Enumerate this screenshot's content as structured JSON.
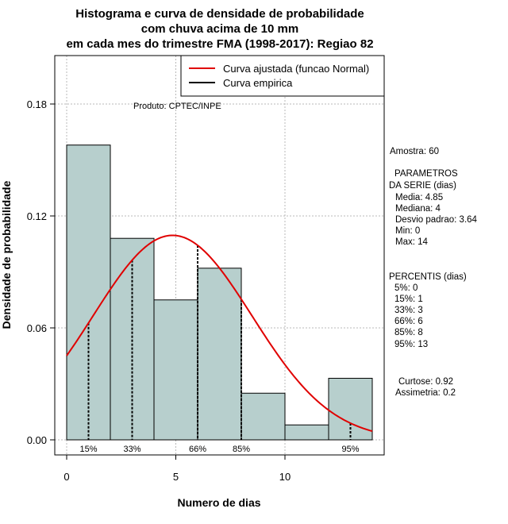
{
  "chart_data": {
    "type": "bar",
    "title_lines": [
      "Histograma e curva de densidade de probabilidade",
      "com chuva acima de 10 mm",
      "em cada mes do trimestre FMA (1998-2017): Regiao 82"
    ],
    "xlabel": "Numero de dias",
    "ylabel": "Densidade de probabilidade",
    "xlim": [
      -0.5,
      14.5
    ],
    "ylim": [
      0,
      0.2
    ],
    "x_ticks": [
      0,
      5,
      10
    ],
    "y_ticks": [
      0.0,
      0.06,
      0.12,
      0.18
    ],
    "y_tick_labels": [
      "0.00",
      "0.06",
      "0.12",
      "0.18"
    ],
    "grid": true,
    "bins": [
      {
        "x0": 0,
        "x1": 2,
        "density": 0.158
      },
      {
        "x0": 2,
        "x1": 4,
        "density": 0.108
      },
      {
        "x0": 4,
        "x1": 6,
        "density": 0.075
      },
      {
        "x0": 6,
        "x1": 8,
        "density": 0.092
      },
      {
        "x0": 8,
        "x1": 10,
        "density": 0.025
      },
      {
        "x0": 10,
        "x1": 12,
        "density": 0.008
      },
      {
        "x0": 12,
        "x1": 14,
        "density": 0.033
      }
    ],
    "bar_color": "#b7cfcd",
    "normal_curve": {
      "mean": 4.85,
      "sd": 3.64,
      "x_range": [
        0,
        14
      ],
      "color": "#e00000"
    },
    "percentile_lines": [
      {
        "label": "15%",
        "x": 1
      },
      {
        "label": "33%",
        "x": 3
      },
      {
        "label": "66%",
        "x": 6
      },
      {
        "label": "85%",
        "x": 8
      },
      {
        "label": "95%",
        "x": 13
      }
    ],
    "legend": {
      "position": "top-right",
      "entries": [
        {
          "label": "Curva ajustada (funcao Normal)",
          "color": "#e00000"
        },
        {
          "label": "Curva empirica",
          "color": "#000000"
        }
      ]
    },
    "credit": "Produto: CPTEC/INPE"
  },
  "stats_panel": {
    "sample": "Amostra: 60",
    "params_header_1": "PARAMETROS",
    "params_header_2": "DA SERIE (dias)",
    "params": [
      "Media: 4.85",
      "Mediana: 4",
      "Desvio padrao: 3.64",
      "Min: 0",
      "Max: 14"
    ],
    "percentiles_header": "PERCENTIS (dias)",
    "percentiles": [
      "5%: 0",
      "15%: 1",
      "33%: 3",
      "66%: 6",
      "85%: 8",
      "95%: 13"
    ],
    "kurtosis": "Curtose: 0.92",
    "skewness": "Assimetria: 0.2"
  }
}
